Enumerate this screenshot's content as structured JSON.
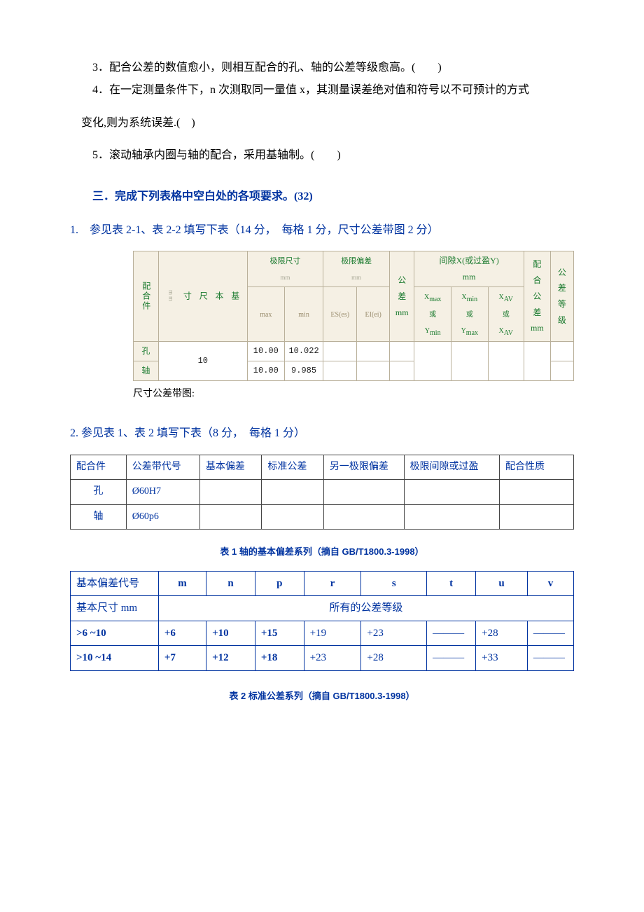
{
  "questions": {
    "q3": "3．配合公差的数值愈小，则相互配合的孔、轴的公差等级愈高。(　　)",
    "q4a": "4．在一定测量条件下，n 次测取同一量值 x，其测量误差绝对值和符号以不可预计的方式",
    "q4b": "变化,则为系统误差.(　)",
    "q5": "5．滚动轴承内圈与轴的配合，采用基轴制。(　　)"
  },
  "section3": {
    "heading": "三．完成下列表格中空白处的各项要求。(32)",
    "q1": "1.　参见表 2-1、表 2-2 填写下表（14 分，　每格 1 分，尺寸公差带图 2 分）",
    "q2": "2. 参见表 1、表 2 填写下表（8 分，　每格 1 分）",
    "caption": "尺寸公差带图:"
  },
  "table1": {
    "hdr_fit": "配合件",
    "hdr_basic": "基本尺寸 mm",
    "hdr_limsize": "极限尺寸 mm",
    "hdr_limdev": "极限偏差 mm",
    "hdr_tol": "公差 mm",
    "hdr_gap": "间隙X(或过盈Y) mm",
    "hdr_fittol": "配合公差 mm",
    "hdr_grade": "公差等级",
    "sub_max": "max",
    "sub_min": "min",
    "sub_es": "ES(es)",
    "sub_ei": "EI(ei)",
    "sub_x1": "Xmax 或 Ymin",
    "sub_x2": "Xmin 或 Ymax",
    "sub_x3": "XAV 或 XAV",
    "row_hole": "孔",
    "row_shaft": "轴",
    "basic": "10",
    "hole_max": "10.00",
    "hole_min": "10.022",
    "shaft_max": "10.00",
    "shaft_min": "9.985"
  },
  "table2": {
    "headers": [
      "配合件",
      "公差带代号",
      "基本偏差",
      "标准公差",
      "另一极限偏差",
      "极限间隙或过盈",
      "配合性质"
    ],
    "rows": [
      [
        "孔",
        "Ø60H7",
        "",
        "",
        "",
        "",
        ""
      ],
      [
        "轴",
        "Ø60p6",
        "",
        "",
        "",
        "",
        ""
      ]
    ],
    "col_widths": [
      "70px",
      "95px",
      "80px",
      "80px",
      "110px",
      "135px",
      "100px"
    ]
  },
  "table3_title": "表 1 轴的基本偏差系列（摘自 GB/T1800.3-1998）",
  "table3": {
    "h_code": "基本偏差代号",
    "h_size": "基本尺寸 mm",
    "h_all": "所有的公差等级",
    "cols": [
      "m",
      "n",
      "p",
      "r",
      "s",
      "t",
      "u",
      "v"
    ],
    "rows": [
      {
        "label": ">6 ~10",
        "vals": [
          "+6",
          "+10",
          "+15",
          "+19",
          "+23",
          "———",
          "+28",
          "———"
        ]
      },
      {
        "label": ">10 ~14",
        "vals": [
          "+7",
          "+12",
          "+18",
          "+23",
          "+28",
          "———",
          "+33",
          "———"
        ]
      }
    ],
    "col_widths": [
      "130px",
      "60px",
      "60px",
      "60px",
      "75px",
      "90px",
      "55px",
      "65px",
      "50px"
    ]
  },
  "table4_title": "表 2 标准公差系列（摘自 GB/T1800.3-1998）"
}
